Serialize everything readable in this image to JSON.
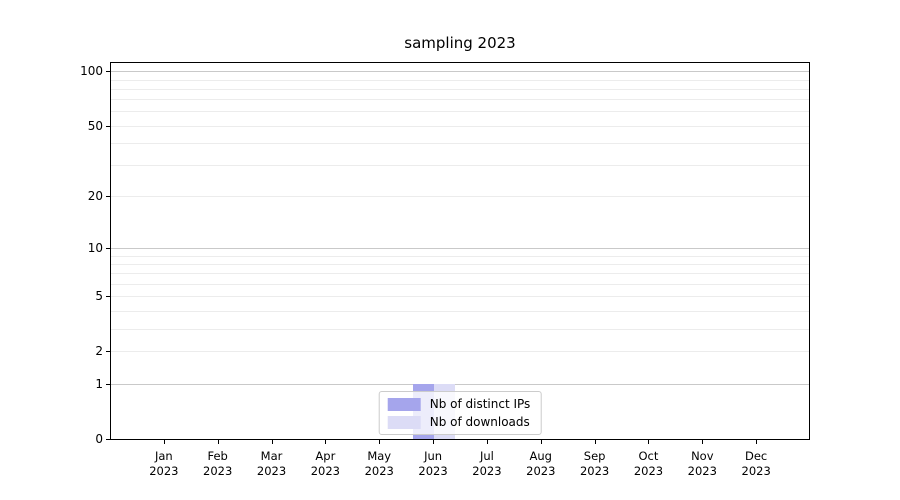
{
  "chart_data": {
    "type": "bar",
    "title": "sampling 2023",
    "xlabel": "",
    "ylabel": "",
    "categories": [
      "Jan 2023",
      "Feb 2023",
      "Mar 2023",
      "Apr 2023",
      "May 2023",
      "Jun 2023",
      "Jul 2023",
      "Aug 2023",
      "Sep 2023",
      "Oct 2023",
      "Nov 2023",
      "Dec 2023"
    ],
    "series": [
      {
        "name": "Nb of distinct IPs",
        "color": "#a5a5ec",
        "values": [
          0,
          0,
          0,
          0,
          0,
          1,
          0,
          0,
          0,
          0,
          0,
          0
        ]
      },
      {
        "name": "Nb of downloads",
        "color": "#dcdcf6",
        "values": [
          0,
          0,
          0,
          0,
          0,
          1,
          0,
          0,
          0,
          0,
          0,
          0
        ]
      }
    ],
    "yscale": "log1p",
    "ylim": [
      0,
      111
    ],
    "ytick_labels": [
      "100",
      "50",
      "20",
      "10",
      "5",
      "2",
      "1",
      "0"
    ],
    "ytick_values": [
      100,
      50,
      20,
      10,
      5,
      2,
      1,
      0
    ],
    "major_gridline_values": [
      1,
      10,
      100
    ],
    "minor_gridline_values": [
      2,
      3,
      4,
      5,
      6,
      7,
      8,
      9,
      20,
      30,
      40,
      50,
      60,
      70,
      80,
      90
    ],
    "grid": true,
    "legend_position": "lower center"
  },
  "colors": {
    "spine": "#000000",
    "major_grid": "#c9c9c9",
    "minor_grid": "#ececec",
    "background": "#ffffff",
    "legend_border": "#cccccc",
    "text": "#000000"
  }
}
